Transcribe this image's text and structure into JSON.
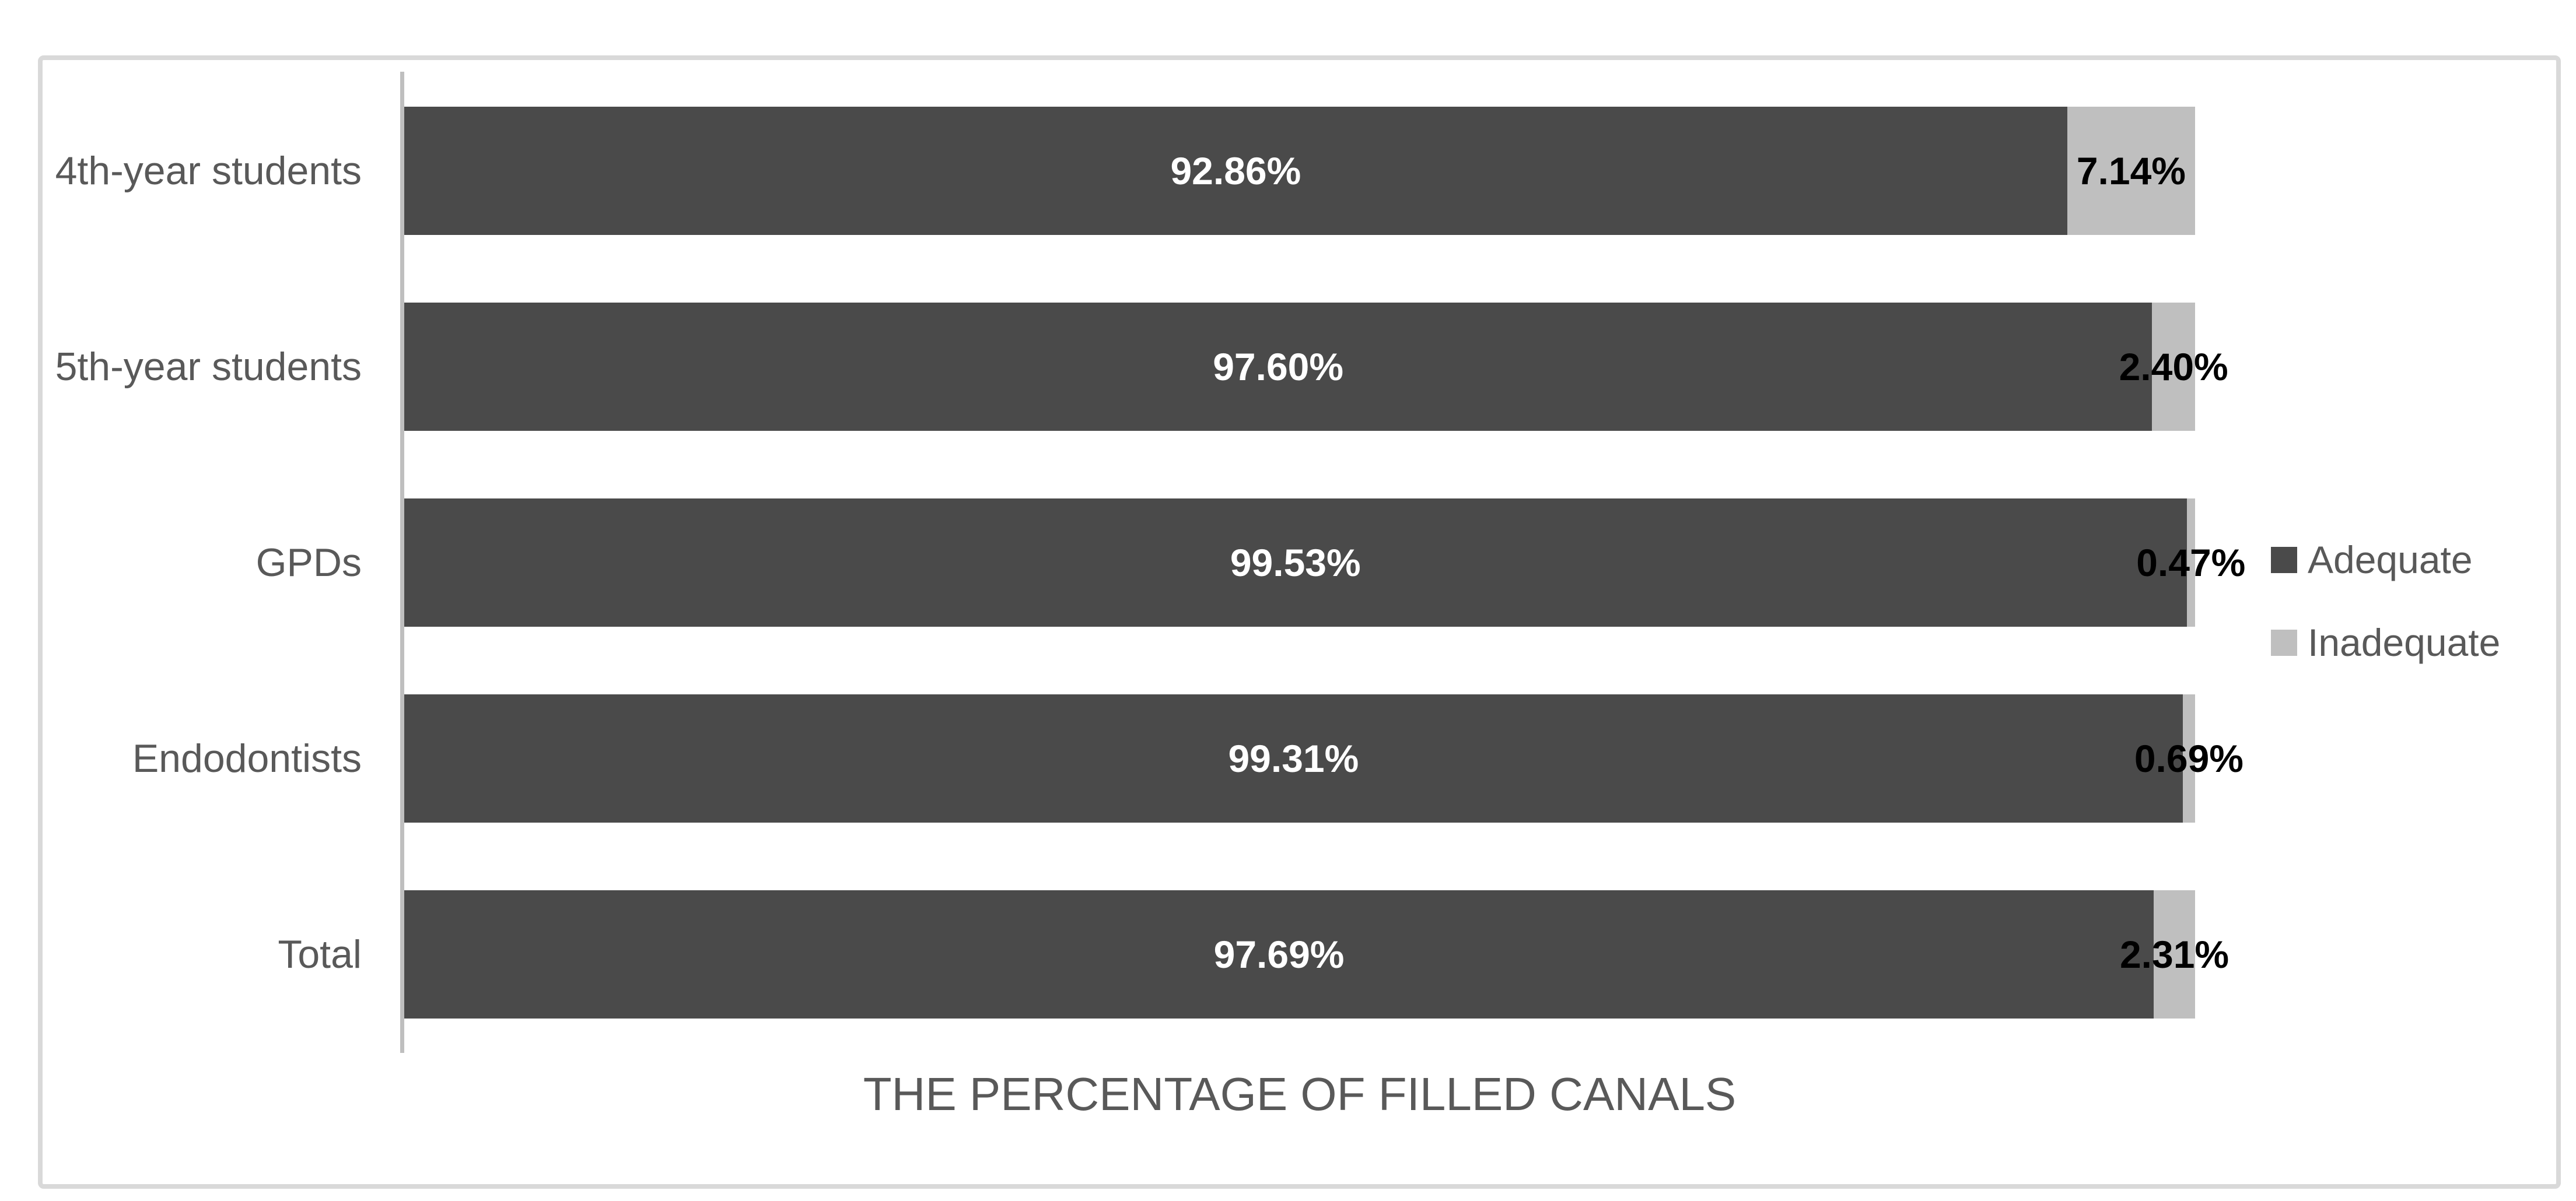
{
  "title": "THE PERCENTAGE OF FILLED CANALS",
  "colors": {
    "background": "#ffffff",
    "frame_border": "#d9d9d9",
    "axis_line": "#bfbfbf",
    "adequate_fill": "#4a4a4a",
    "inadequate_fill": "#bfbfbf",
    "text_gray": "#595959",
    "adequate_value_text": "#ffffff",
    "inadequate_value_text": "#000000"
  },
  "legend": {
    "position": "right",
    "items": [
      {
        "label": "Adequate",
        "color": "#4a4a4a"
      },
      {
        "label": "Inadequate",
        "color": "#bfbfbf"
      }
    ]
  },
  "chart_data": {
    "type": "bar",
    "orientation": "horizontal",
    "stacked": true,
    "title": "THE PERCENTAGE OF FILLED CANALS",
    "xlabel": "",
    "ylabel": "",
    "xlim": [
      0,
      100
    ],
    "grid": false,
    "legend_position": "right",
    "categories": [
      "4th-year students",
      "5th-year students",
      "GPDs",
      "Endodontists",
      "Total"
    ],
    "series": [
      {
        "name": "Adequate",
        "values": [
          92.86,
          97.6,
          99.53,
          99.31,
          97.69
        ]
      },
      {
        "name": "Inadequate",
        "values": [
          7.14,
          2.4,
          0.47,
          0.69,
          2.31
        ]
      }
    ],
    "value_label_format": "0.00%"
  }
}
